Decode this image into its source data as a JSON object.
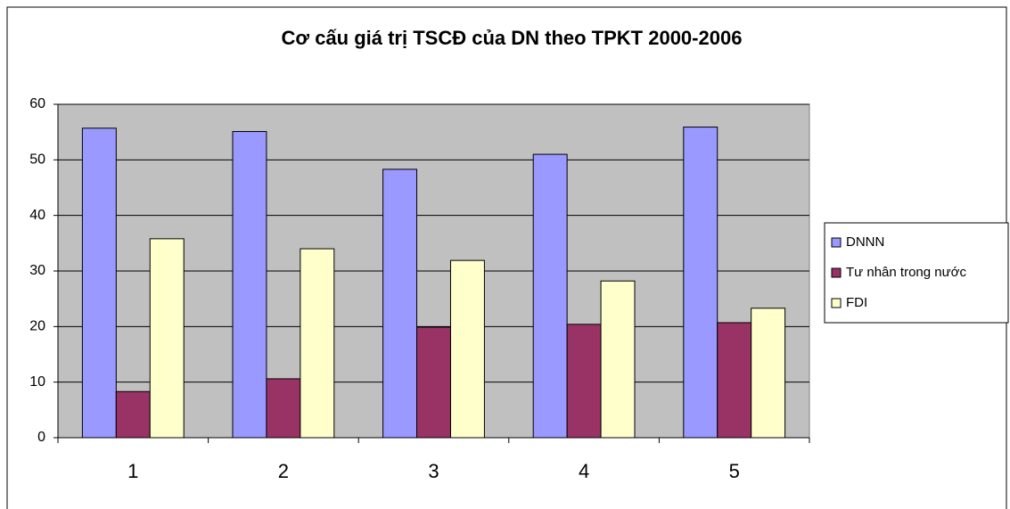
{
  "chart_data": {
    "type": "bar",
    "title": "Cơ cấu giá trị TSCĐ của DN theo TPKT 2000-2006",
    "categories": [
      "1",
      "2",
      "3",
      "4",
      "5"
    ],
    "series": [
      {
        "name": "DNNN",
        "color": "#9999ff",
        "values": [
          55.7,
          55.1,
          48.3,
          51.0,
          55.9
        ]
      },
      {
        "name": "Tư nhân trong nước",
        "color": "#993366",
        "values": [
          8.3,
          10.6,
          19.9,
          20.4,
          20.7
        ]
      },
      {
        "name": "FDI",
        "color": "#ffffcc",
        "values": [
          35.8,
          34.0,
          31.9,
          28.2,
          23.3
        ]
      }
    ],
    "ylim": [
      0,
      60
    ],
    "yticks": [
      0,
      10,
      20,
      30,
      40,
      50,
      60
    ],
    "grid": true,
    "legend": "right"
  }
}
